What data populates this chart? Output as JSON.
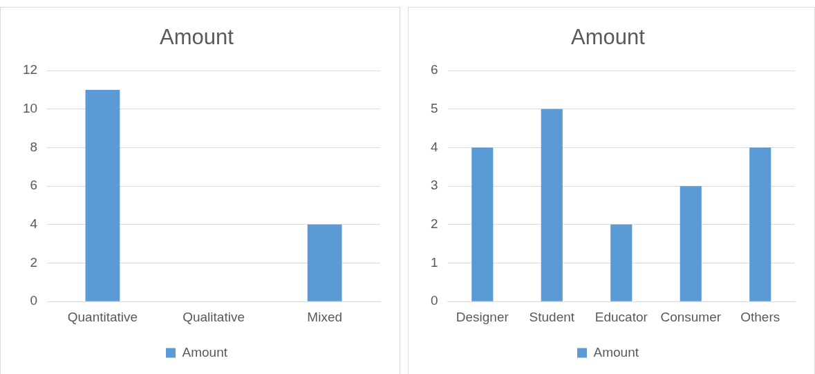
{
  "chart_data": [
    {
      "type": "bar",
      "title": "Amount",
      "categories": [
        "Quantitative",
        "Qualitative",
        "Mixed"
      ],
      "series": [
        {
          "name": "Amount",
          "color": "#5b9bd5",
          "values": [
            11,
            0,
            4
          ]
        }
      ],
      "ylim": [
        0,
        12
      ],
      "yticks": [
        0,
        2,
        4,
        6,
        8,
        10,
        12
      ],
      "grid": "y",
      "legend": "bottom"
    },
    {
      "type": "bar",
      "title": "Amount",
      "categories": [
        "Designer",
        "Student",
        "Educator",
        "Consumer",
        "Others"
      ],
      "series": [
        {
          "name": "Amount",
          "color": "#5b9bd5",
          "values": [
            4,
            5,
            2,
            3,
            4
          ]
        }
      ],
      "ylim": [
        0,
        6
      ],
      "yticks": [
        0,
        1,
        2,
        3,
        4,
        5,
        6
      ],
      "grid": "y",
      "legend": "bottom"
    }
  ]
}
